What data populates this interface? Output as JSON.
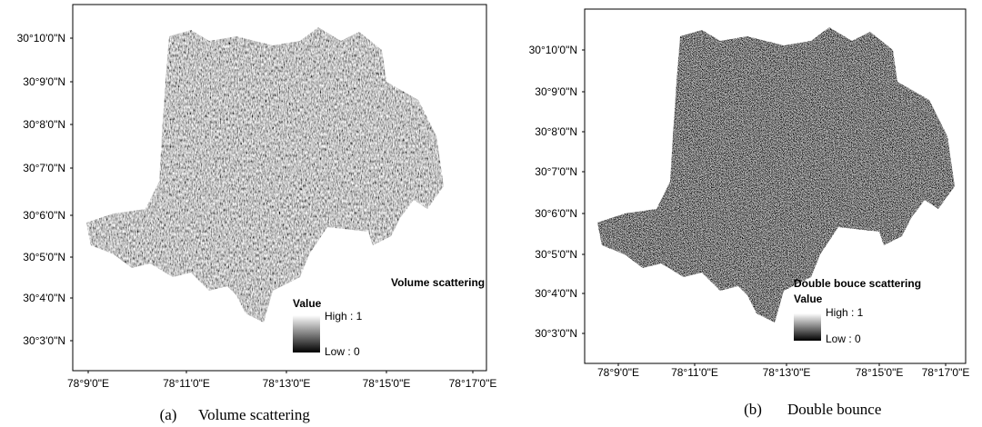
{
  "panels": [
    {
      "legend_title": "Volume scattering",
      "legend_label": "Value",
      "high": "High : 1",
      "low": "Low : 0",
      "lat_ticks": [
        "30°10'0\"N",
        "30°9'0\"N",
        "30°8'0\"N",
        "30°7'0\"N",
        "30°6'0\"N",
        "30°5'0\"N",
        "30°4'0\"N",
        "30°3'0\"N"
      ],
      "lon_ticks": [
        "78°9'0\"E",
        "78°11'0\"E",
        "78°13'0\"E",
        "78°15'0\"E",
        "78°17'0\"E"
      ],
      "caption_label": "(a)",
      "caption_text": "Volume scattering"
    },
    {
      "legend_title": "Double bouce scattering",
      "legend_label": "Value",
      "high": "High : 1",
      "low": "Low : 0",
      "lat_ticks": [
        "30°10'0\"N",
        "30°9'0\"N",
        "30°8'0\"N",
        "30°7'0\"N",
        "30°6'0\"N",
        "30°5'0\"N",
        "30°4'0\"N",
        "30°3'0\"N"
      ],
      "lon_ticks": [
        "78°9'0\"E",
        "78°11'0\"E",
        "78°13'0\"E",
        "78°15'0\"E",
        "78°17'0\"E"
      ],
      "caption_label": "(b)",
      "caption_text": "Double bounce"
    }
  ]
}
